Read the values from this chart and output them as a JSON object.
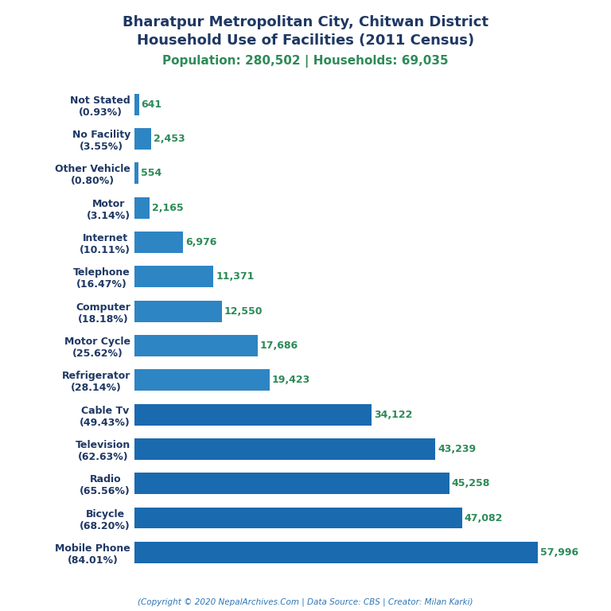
{
  "title_line1": "Bharatpur Metropolitan City, Chitwan District",
  "title_line2": "Household Use of Facilities (2011 Census)",
  "subtitle": "Population: 280,502 | Households: 69,035",
  "categories": [
    "Not Stated\n(0.93%)",
    "No Facility\n(3.55%)",
    "Other Vehicle\n(0.80%)",
    "Motor\n(3.14%)",
    "Internet\n(10.11%)",
    "Telephone\n(16.47%)",
    "Computer\n(18.18%)",
    "Motor Cycle\n(25.62%)",
    "Refrigerator\n(28.14%)",
    "Cable Tv\n(49.43%)",
    "Television\n(62.63%)",
    "Radio\n(65.56%)",
    "Bicycle\n(68.20%)",
    "Mobile Phone\n(84.01%)"
  ],
  "values": [
    641,
    2453,
    554,
    2165,
    6976,
    11371,
    12550,
    17686,
    19423,
    34122,
    43239,
    45258,
    47082,
    57996
  ],
  "bar_color_small": "#2e85c3",
  "bar_color_large": "#1a6aaf",
  "value_color": "#2d8a57",
  "title_color": "#1f3864",
  "subtitle_color": "#2e8b57",
  "footer": "(Copyright © 2020 NepalArchives.Com | Data Source: CBS | Creator: Milan Karki)",
  "footer_color": "#2e75b6",
  "xlim": [
    0,
    65000
  ],
  "background_color": "#ffffff",
  "title_fontsize": 13,
  "subtitle_fontsize": 11,
  "label_fontsize": 9,
  "value_fontsize": 9,
  "footer_fontsize": 7.5
}
